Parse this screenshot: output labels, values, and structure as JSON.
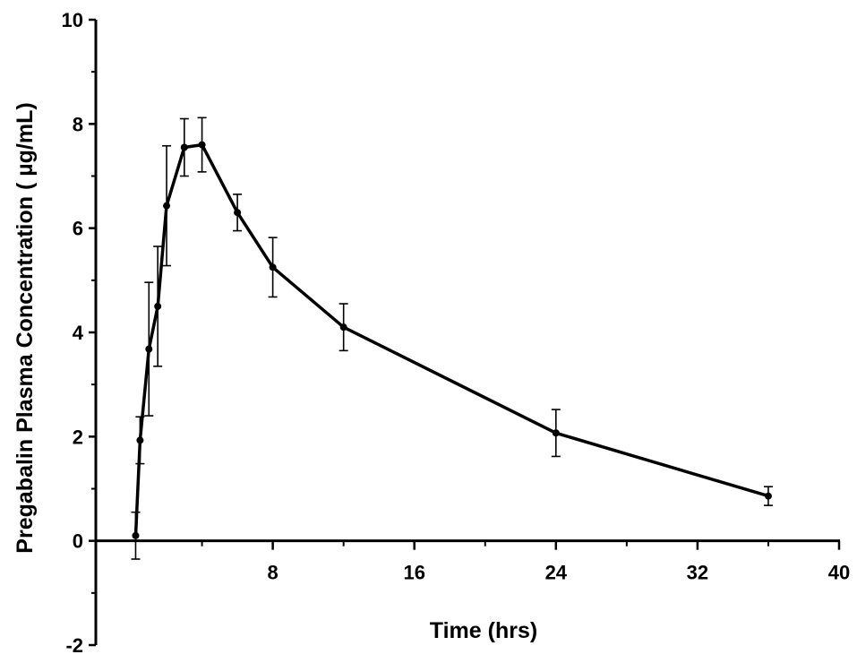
{
  "chart_data": {
    "type": "line",
    "title": "",
    "xlabel": "Time (hrs)",
    "ylabel": "Pregabalin Plasma Concentration ( µg/mL)",
    "xlim": [
      -2,
      40
    ],
    "ylim": [
      -2,
      10
    ],
    "xticks": [
      8,
      16,
      24,
      32,
      40
    ],
    "xtick_labels": [
      "8",
      "16",
      "24",
      "32",
      "40"
    ],
    "yticks": [
      -2,
      0,
      2,
      4,
      6,
      8,
      10
    ],
    "ytick_labels": [
      "-2",
      "0",
      "2",
      "4",
      "6",
      "8",
      "10"
    ],
    "grid": false,
    "legend": "none",
    "series": [
      {
        "x": [
          0.25,
          0.5,
          1.0,
          1.5,
          2.0,
          3.0,
          4.0,
          6.0,
          8.0,
          12.0,
          24.0,
          36.0
        ],
        "y": [
          0.1,
          1.93,
          3.68,
          4.5,
          6.43,
          7.55,
          7.6,
          6.3,
          5.25,
          4.1,
          2.07,
          0.86
        ],
        "error": [
          0.45,
          0.45,
          1.28,
          1.15,
          1.15,
          0.55,
          0.52,
          0.35,
          0.57,
          0.45,
          0.45,
          0.18
        ]
      }
    ]
  }
}
